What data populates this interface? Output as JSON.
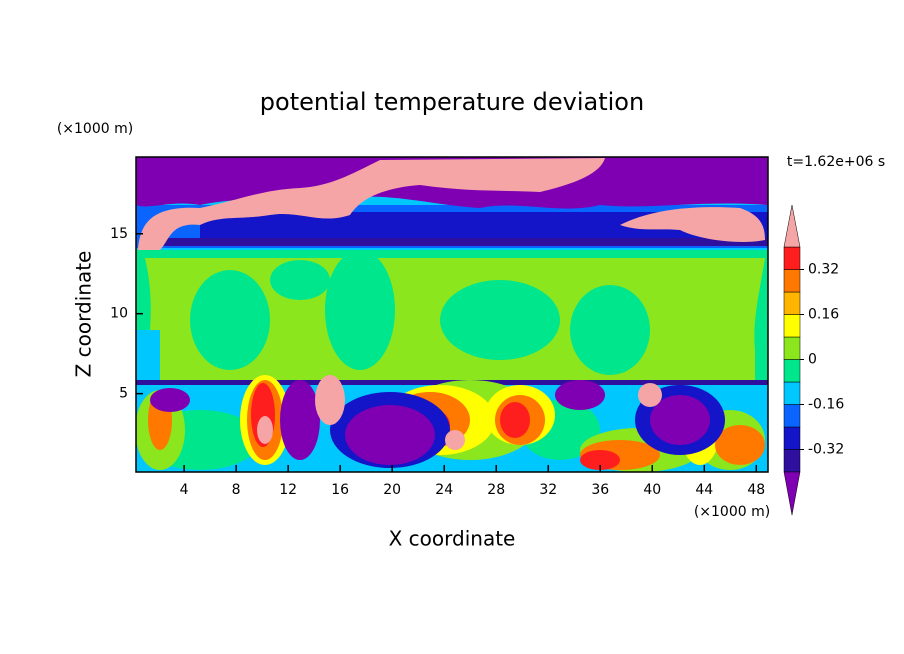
{
  "chart_data": {
    "type": "contour",
    "title": "potential temperature deviation",
    "x_label": "X coordinate",
    "y_label": "Z coordinate",
    "x_unit": "(×1000 m)",
    "y_unit": "(×1000 m)",
    "time_label": "t=1.62e+06 s",
    "xlim": [
      0.3,
      48.9
    ],
    "ylim": [
      0.1,
      19.8
    ],
    "xticks": [
      4,
      8,
      12,
      16,
      20,
      24,
      28,
      32,
      36,
      40,
      44,
      48
    ],
    "yticks": [
      5,
      10,
      15
    ],
    "colorbar": {
      "levels": [
        -0.4,
        -0.32,
        -0.24,
        -0.16,
        -0.08,
        0,
        0.08,
        0.16,
        0.24,
        0.32,
        0.4
      ],
      "colors": [
        "#7f00b2",
        "#2e0f9e",
        "#1414c8",
        "#0a64ff",
        "#00c8ff",
        "#00e68c",
        "#8ce61e",
        "#ffff00",
        "#ffb400",
        "#ff7800",
        "#ff1e1e",
        "#f5a5a5"
      ],
      "ticks": [
        -0.32,
        -0.16,
        0,
        0.16,
        0.32
      ]
    }
  }
}
